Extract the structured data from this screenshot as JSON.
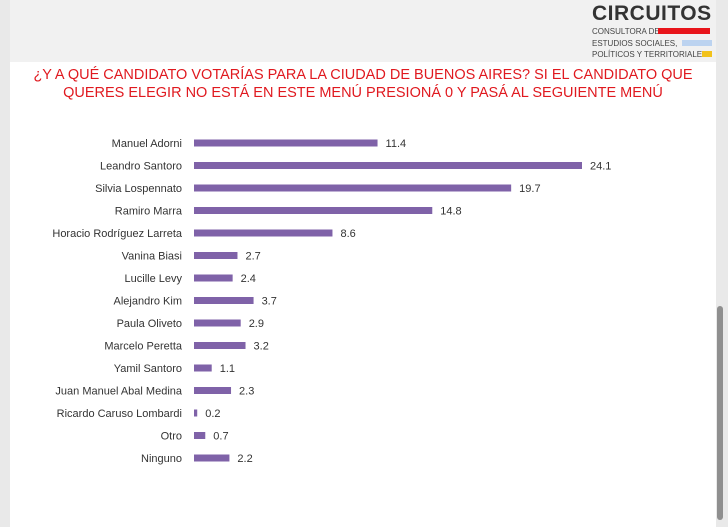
{
  "logo": {
    "name": "CIRCUITOS",
    "line1": "CONSULTORA DE",
    "line2": "ESTUDIOS SOCIALES,",
    "line3": "POLÍTICOS Y TERRITORIALES",
    "colors": [
      "#e8151b",
      "#bcd3f0",
      "#f2c21b"
    ]
  },
  "chart_data": {
    "type": "bar",
    "orientation": "horizontal",
    "title_line1": "¿Y A QUÉ CANDIDATO VOTARÍAS PARA LA CIUDAD DE BUENOS AIRES? SI EL CANDIDATO QUE",
    "title_line2": "QUERES ELEGIR NO ESTÁ EN ESTE MENÚ PRESIONÁ 0 Y PASÁ AL SEGUIENTE MENÚ",
    "bar_color": "#7f62a8",
    "categories": [
      "Manuel Adorni",
      "Leandro Santoro",
      "Silvia Lospennato",
      "Ramiro Marra",
      "Horacio Rodríguez Larreta",
      "Vanina Biasi",
      "Lucille Levy",
      "Alejandro Kim",
      "Paula Oliveto",
      "Marcelo Peretta",
      "Yamil Santoro",
      "Juan Manuel Abal Medina",
      "Ricardo Caruso Lombardi",
      "Otro",
      "Ninguno"
    ],
    "values": [
      11.4,
      24.1,
      19.7,
      14.8,
      8.6,
      2.7,
      2.4,
      3.7,
      2.9,
      3.2,
      1.1,
      2.3,
      0.2,
      0.7,
      2.2
    ],
    "value_labels": [
      "11.4",
      "24.1",
      "19.7",
      "14.8",
      "8.6",
      "2.7",
      "2.4",
      "3.7",
      "2.9",
      "3.2",
      "1.1",
      "2.3",
      "0.2",
      "0.7",
      "2.2"
    ],
    "xlim": [
      0,
      24.1
    ],
    "grid": false,
    "legend": "none"
  }
}
